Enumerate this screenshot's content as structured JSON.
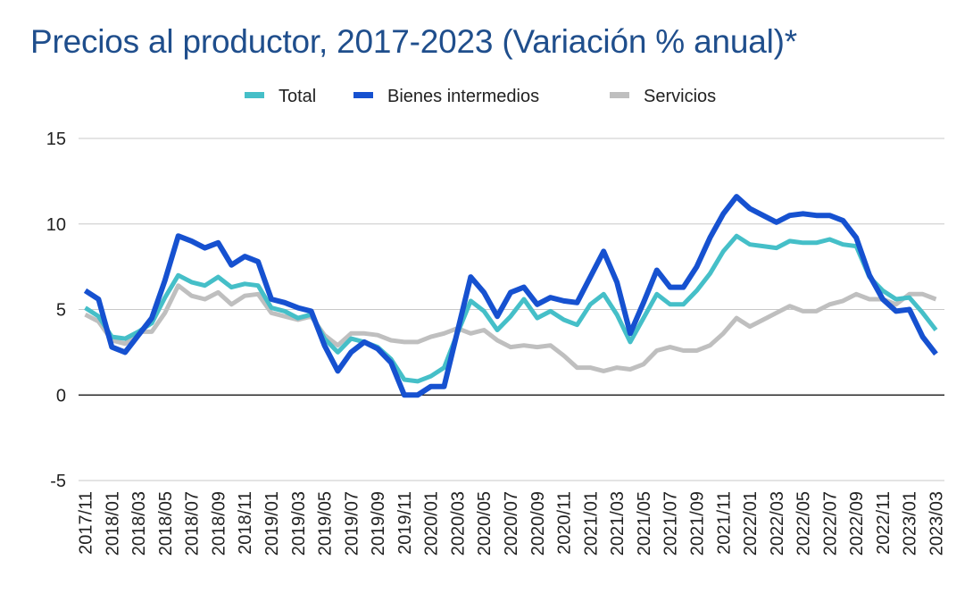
{
  "title": "Precios al productor, 2017-2023 (Variación % anual)*",
  "chart_data": {
    "type": "line",
    "title": "Precios al productor, 2017-2023 (Variación % anual)*",
    "xlabel": "",
    "ylabel": "",
    "ylim": [
      -5,
      15
    ],
    "yticks": [
      15,
      10,
      5,
      0,
      -5
    ],
    "grid": true,
    "legend_position": "top",
    "x": [
      "2017/11",
      "2017/12",
      "2018/01",
      "2018/02",
      "2018/03",
      "2018/04",
      "2018/05",
      "2018/06",
      "2018/07",
      "2018/08",
      "2018/09",
      "2018/10",
      "2018/11",
      "2018/12",
      "2019/01",
      "2019/02",
      "2019/03",
      "2019/04",
      "2019/05",
      "2019/06",
      "2019/07",
      "2019/08",
      "2019/09",
      "2019/10",
      "2019/11",
      "2019/12",
      "2020/01",
      "2020/02",
      "2020/03",
      "2020/04",
      "2020/05",
      "2020/06",
      "2020/07",
      "2020/08",
      "2020/09",
      "2020/10",
      "2020/11",
      "2020/12",
      "2021/01",
      "2021/02",
      "2021/03",
      "2021/04",
      "2021/05",
      "2021/06",
      "2021/07",
      "2021/08",
      "2021/09",
      "2021/10",
      "2021/11",
      "2021/12",
      "2022/01",
      "2022/02",
      "2022/03",
      "2022/04",
      "2022/05",
      "2022/06",
      "2022/07",
      "2022/08",
      "2022/09",
      "2022/10",
      "2022/11",
      "2022/12",
      "2023/01",
      "2023/02",
      "2023/03"
    ],
    "xtick_labels": [
      "2017/11",
      "2018/01",
      "2018/03",
      "2018/05",
      "2018/07",
      "2018/09",
      "2018/11",
      "2019/01",
      "2019/03",
      "2019/05",
      "2019/07",
      "2019/09",
      "2019/11",
      "2020/01",
      "2020/03",
      "2020/05",
      "2020/07",
      "2020/09",
      "2020/11",
      "2021/01",
      "2021/03",
      "2021/05",
      "2021/07",
      "2021/09",
      "2021/11",
      "2022/01",
      "2022/03",
      "2022/05",
      "2022/07",
      "2022/09",
      "2022/11",
      "2023/01",
      "2023/03"
    ],
    "series": [
      {
        "name": "Total",
        "color": "#45bfc8",
        "values": [
          5.1,
          4.6,
          3.4,
          3.3,
          3.7,
          4.2,
          5.7,
          7.0,
          6.6,
          6.4,
          6.9,
          6.3,
          6.5,
          6.4,
          5.1,
          4.9,
          4.5,
          4.7,
          3.3,
          2.5,
          3.3,
          3.1,
          2.8,
          2.1,
          0.9,
          0.8,
          1.1,
          1.6,
          3.6,
          5.5,
          4.9,
          3.8,
          4.6,
          5.6,
          4.5,
          4.9,
          4.4,
          4.1,
          5.3,
          5.9,
          4.7,
          3.1,
          4.5,
          5.9,
          5.3,
          5.3,
          6.1,
          7.1,
          8.4,
          9.3,
          8.8,
          8.7,
          8.6,
          9.0,
          8.9,
          8.9,
          9.1,
          8.8,
          8.7,
          6.9,
          6.1,
          5.6,
          5.7,
          4.8,
          3.8
        ]
      },
      {
        "name": "Bienes intermedios",
        "color": "#1651d0",
        "values": [
          6.1,
          5.6,
          2.8,
          2.5,
          3.5,
          4.5,
          6.7,
          9.3,
          9.0,
          8.6,
          8.9,
          7.6,
          8.1,
          7.8,
          5.6,
          5.4,
          5.1,
          4.9,
          2.9,
          1.4,
          2.5,
          3.1,
          2.7,
          1.9,
          0.0,
          0.0,
          0.5,
          0.5,
          3.7,
          6.9,
          6.0,
          4.6,
          6.0,
          6.3,
          5.3,
          5.7,
          5.5,
          5.4,
          6.9,
          8.4,
          6.6,
          3.6,
          5.4,
          7.3,
          6.3,
          6.3,
          7.5,
          9.2,
          10.6,
          11.6,
          10.9,
          10.5,
          10.1,
          10.5,
          10.6,
          10.5,
          10.5,
          10.2,
          9.2,
          7.0,
          5.6,
          4.9,
          5.0,
          3.4,
          2.4
        ]
      },
      {
        "name": "Servicios",
        "color": "#bfbfbf",
        "values": [
          4.7,
          4.3,
          3.2,
          3.0,
          3.7,
          3.7,
          4.8,
          6.4,
          5.8,
          5.6,
          6.0,
          5.3,
          5.8,
          5.9,
          4.8,
          4.6,
          4.4,
          4.6,
          3.5,
          2.9,
          3.6,
          3.6,
          3.5,
          3.2,
          3.1,
          3.1,
          3.4,
          3.6,
          3.9,
          3.6,
          3.8,
          3.2,
          2.8,
          2.9,
          2.8,
          2.9,
          2.3,
          1.6,
          1.6,
          1.4,
          1.6,
          1.5,
          1.8,
          2.6,
          2.8,
          2.6,
          2.6,
          2.9,
          3.6,
          4.5,
          4.0,
          4.4,
          4.8,
          5.2,
          4.9,
          4.9,
          5.3,
          5.5,
          5.9,
          5.6,
          5.6,
          5.3,
          5.9,
          5.9,
          5.6
        ]
      }
    ]
  }
}
